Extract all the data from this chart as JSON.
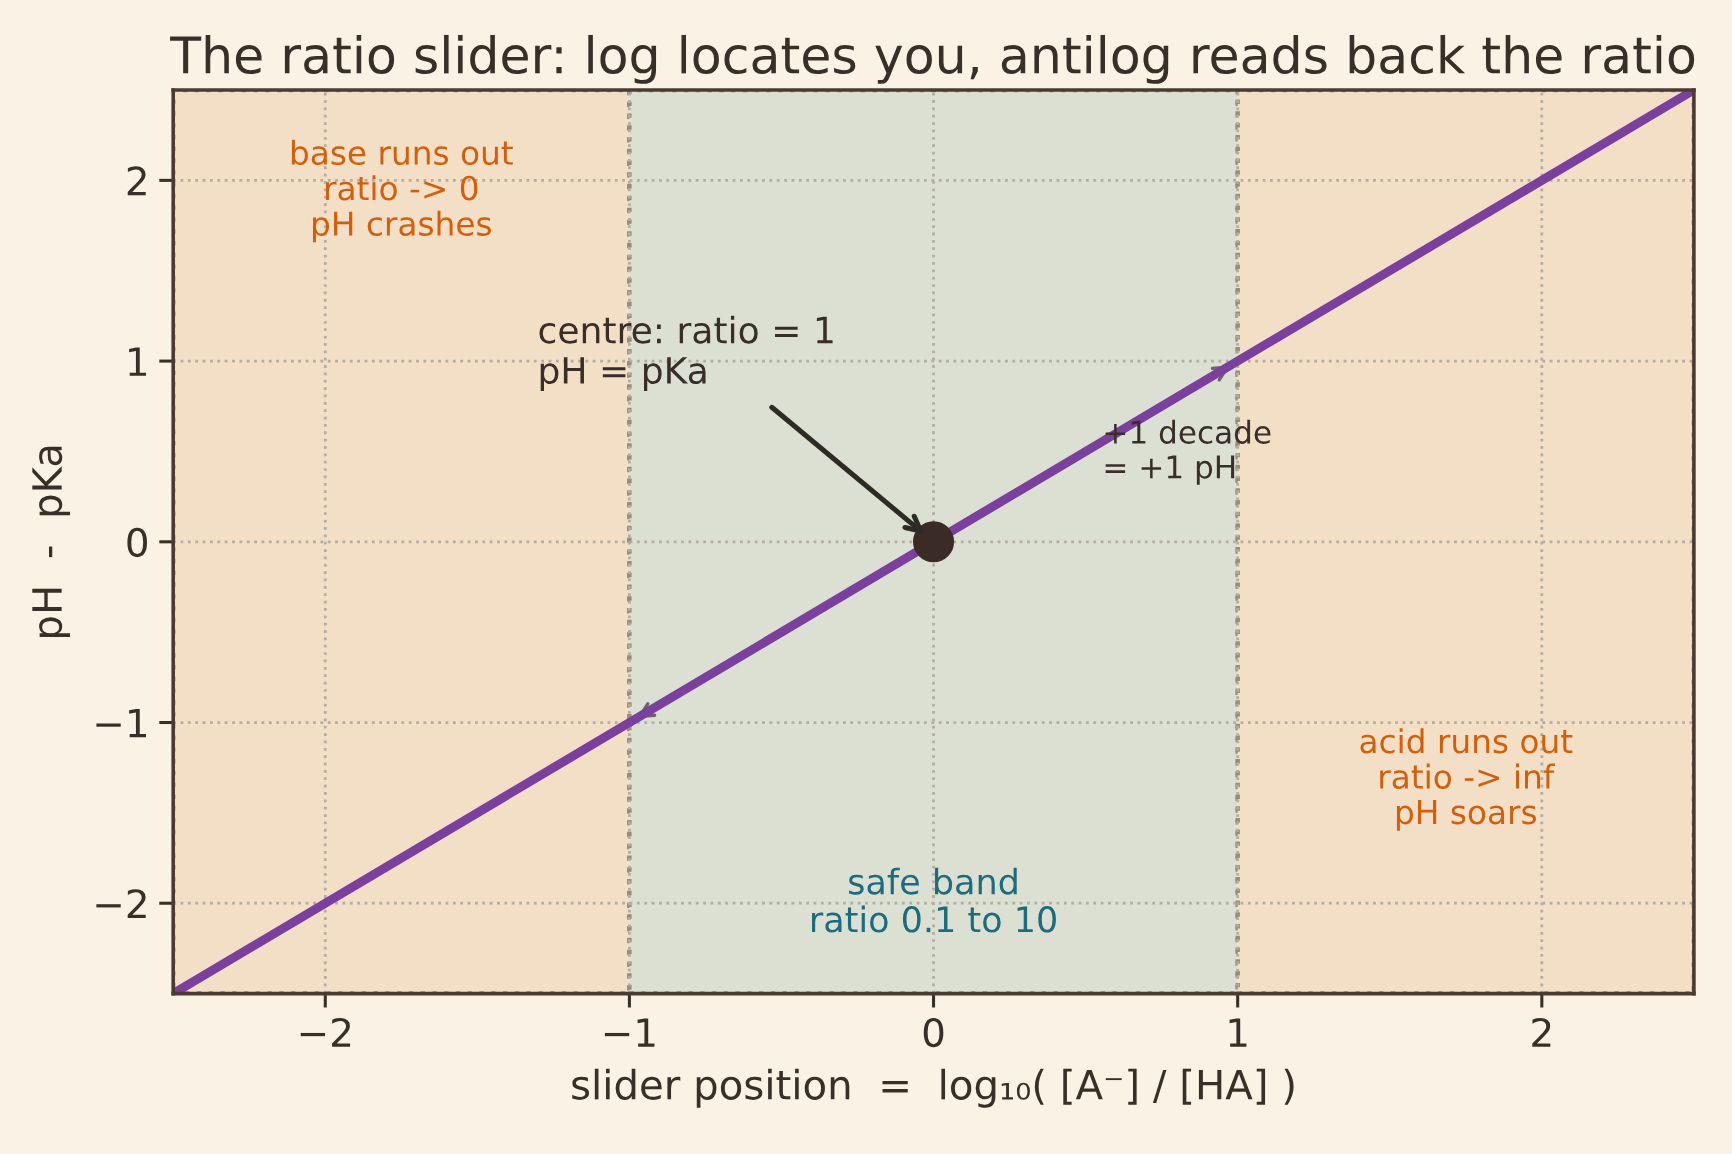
{
  "chart_data": {
    "type": "line",
    "title": "The ratio slider: log locates you, antilog reads back the ratio",
    "xlabel": "slider position  =  log₁₀( [A⁻] / [HA] )",
    "ylabel": "pH  -  pKa",
    "series": [
      {
        "color": "#7b3f9e",
        "x": [
          -2.5,
          2.5
        ],
        "values": [
          -2.5,
          2.5
        ]
      },
      {
        "type": "scatter",
        "color": "#3a2b27",
        "marker": "circle",
        "x": [
          0
        ],
        "values": [
          0
        ]
      }
    ],
    "xlim": [
      -2.5,
      2.5
    ],
    "ylim": [
      -2.5,
      2.5
    ],
    "xticks": [
      -2,
      -1,
      0,
      1,
      2
    ],
    "yticks": [
      -2,
      -1,
      0,
      1,
      2
    ],
    "grid": true,
    "bands": [
      {
        "axis": "x",
        "from": -2.5,
        "to": -1,
        "label": "base runs out\nratio -> 0\npH crashes",
        "color": "#f3dfc6"
      },
      {
        "axis": "x",
        "from": -1,
        "to": 1,
        "label": "safe band\nratio 0.1 to 10",
        "color": "#dce0d2"
      },
      {
        "axis": "x",
        "from": 1,
        "to": 2.5,
        "label": "acid runs out\nratio -> inf\npH soars",
        "color": "#f3dfc6"
      }
    ],
    "annotations": [
      {
        "text": "centre: ratio = 1\npH = pKa",
        "x": 0,
        "y": 0
      },
      "+1 decade\n= +1 pH"
    ]
  }
}
